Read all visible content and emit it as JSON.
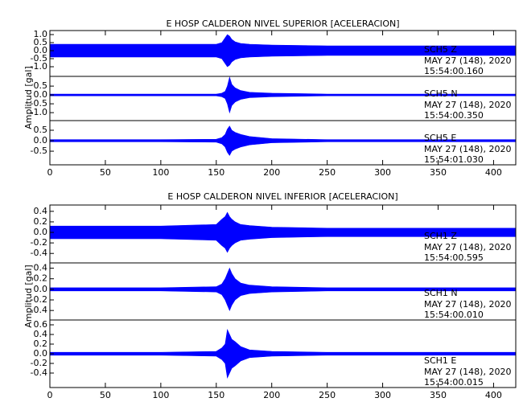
{
  "chart_data": [
    {
      "type": "seismogram",
      "title": "E HOSP CALDERON NIVEL SUPERIOR [ACELERACION]",
      "ylabel": "Amplitud [gal]",
      "xlim": [
        0,
        420
      ],
      "xticks": [
        0,
        50,
        100,
        150,
        200,
        250,
        300,
        350,
        400
      ],
      "panels": [
        {
          "station": "SCH5  Z",
          "date": "MAY 27 (148), 2020",
          "time": "15:54:00.160",
          "color": "#0000ff",
          "ylim": [
            -1.6,
            1.25
          ],
          "yticks": [
            {
              "value": 1,
              "label": "1.0"
            },
            0.5,
            {
              "value": 0,
              "label": "0.0"
            },
            -0.5,
            {
              "value": -1,
              "label": "-1.0"
            }
          ],
          "x": [
            0,
            100,
            150,
            155,
            158,
            160,
            162,
            164,
            167,
            172,
            180,
            200,
            250,
            300,
            420
          ],
          "values": [
            0.4,
            0.4,
            0.4,
            0.5,
            0.8,
            1.0,
            0.9,
            0.7,
            0.55,
            0.45,
            0.4,
            0.35,
            0.3,
            0.3,
            0.3
          ]
        },
        {
          "station": "SCH5  N",
          "date": "MAY 27 (148), 2020",
          "time": "15:54:00.350",
          "color": "#0000ff",
          "ylim": [
            -1.45,
            1.05
          ],
          "yticks": [
            0.5,
            {
              "value": 0,
              "label": "0.0"
            },
            -0.5,
            {
              "value": -1,
              "label": "-1.0"
            }
          ],
          "x": [
            0,
            100,
            150,
            155,
            158,
            160,
            162,
            164,
            167,
            172,
            180,
            200,
            250,
            300,
            420
          ],
          "values": [
            0.05,
            0.05,
            0.05,
            0.1,
            0.2,
            0.5,
            1.0,
            0.6,
            0.4,
            0.25,
            0.15,
            0.1,
            0.05,
            0.05,
            0.05
          ]
        },
        {
          "station": "SCH5  E",
          "date": "MAY 27 (148), 2020",
          "time": "15:54:01.030",
          "color": "#0000ff",
          "ylim": [
            -1.15,
            0.96
          ],
          "yticks": [
            0.5,
            {
              "value": 0,
              "label": "0.0"
            },
            -0.5
          ],
          "x": [
            0,
            100,
            150,
            155,
            158,
            160,
            162,
            164,
            167,
            172,
            180,
            200,
            250,
            300,
            420
          ],
          "values": [
            0.05,
            0.05,
            0.07,
            0.15,
            0.3,
            0.55,
            0.7,
            0.5,
            0.4,
            0.3,
            0.2,
            0.1,
            0.05,
            0.05,
            0.05
          ]
        }
      ]
    },
    {
      "type": "seismogram",
      "title": "E HOSP CALDERON NIVEL INFERIOR [ACELERACION]",
      "ylabel": "Amplitud [gal]",
      "xlim": [
        0,
        420
      ],
      "xticks": [
        0,
        50,
        100,
        150,
        200,
        250,
        300,
        350,
        400
      ],
      "panels": [
        {
          "station": "SCH1  Z",
          "date": "MAY 27 (148), 2020",
          "time": "15:54:00.595",
          "color": "#0000ff",
          "ylim": [
            -0.58,
            0.52
          ],
          "yticks": [
            0.4,
            0.2,
            {
              "value": 0,
              "label": "0.0"
            },
            -0.2,
            -0.4
          ],
          "x": [
            0,
            100,
            150,
            155,
            158,
            160,
            162,
            164,
            167,
            172,
            180,
            200,
            250,
            300,
            420
          ],
          "values": [
            0.12,
            0.12,
            0.15,
            0.25,
            0.3,
            0.38,
            0.3,
            0.25,
            0.2,
            0.15,
            0.13,
            0.1,
            0.08,
            0.08,
            0.08
          ]
        },
        {
          "station": "SCH1  N",
          "date": "MAY 27 (148), 2020",
          "time": "15:54:00.010",
          "color": "#0000ff",
          "ylim": [
            -0.58,
            0.5
          ],
          "yticks": [
            0.4,
            0.2,
            {
              "value": 0,
              "label": "0.0"
            },
            -0.2,
            -0.4
          ],
          "x": [
            0,
            100,
            150,
            155,
            158,
            160,
            162,
            164,
            167,
            172,
            180,
            200,
            250,
            300,
            420
          ],
          "values": [
            0.03,
            0.03,
            0.05,
            0.1,
            0.2,
            0.3,
            0.4,
            0.3,
            0.2,
            0.12,
            0.08,
            0.05,
            0.03,
            0.03,
            0.03
          ]
        },
        {
          "station": "SCH1  E",
          "date": "MAY 27 (148), 2020",
          "time": "15:54:00.015",
          "color": "#0000ff",
          "ylim": [
            -0.7,
            0.7
          ],
          "yticks": [
            0.6,
            0.4,
            0.2,
            {
              "value": 0,
              "label": "0.0"
            },
            -0.2,
            -0.4
          ],
          "x": [
            0,
            100,
            150,
            155,
            158,
            160,
            162,
            164,
            167,
            172,
            180,
            200,
            250,
            300,
            420
          ],
          "values": [
            0.03,
            0.03,
            0.05,
            0.12,
            0.2,
            0.5,
            0.4,
            0.3,
            0.25,
            0.15,
            0.08,
            0.05,
            0.03,
            0.03,
            0.03
          ]
        }
      ]
    }
  ]
}
